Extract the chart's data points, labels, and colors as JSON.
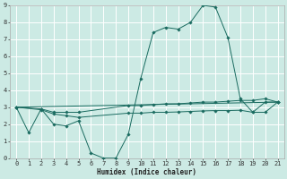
{
  "title": "",
  "xlabel": "Humidex (Indice chaleur)",
  "bg_color": "#cceae4",
  "grid_color": "#ffffff",
  "line_color": "#1a6b60",
  "xlim": [
    -0.5,
    21.5
  ],
  "ylim": [
    0,
    9
  ],
  "x_ticks": [
    0,
    1,
    2,
    3,
    4,
    5,
    6,
    7,
    8,
    9,
    10,
    11,
    12,
    13,
    14,
    15,
    16,
    17,
    18,
    19,
    20,
    21
  ],
  "y_ticks": [
    0,
    1,
    2,
    3,
    4,
    5,
    6,
    7,
    8,
    9
  ],
  "series1_x": [
    0,
    1,
    2,
    3,
    4,
    5,
    6,
    7,
    8,
    9,
    10,
    11,
    12,
    13,
    14,
    15,
    16,
    17,
    18,
    19,
    20,
    21
  ],
  "series1_y": [
    3.0,
    1.5,
    2.9,
    2.0,
    1.9,
    2.2,
    0.3,
    0.0,
    0.0,
    1.4,
    4.7,
    7.4,
    7.7,
    7.6,
    8.0,
    9.0,
    8.9,
    7.1,
    3.5,
    2.7,
    3.3,
    3.3
  ],
  "series2_x": [
    0,
    2,
    3,
    4,
    5,
    9,
    10,
    11,
    12,
    13,
    14,
    15,
    16,
    17,
    18,
    19,
    20,
    21
  ],
  "series2_y": [
    3.0,
    2.9,
    2.7,
    2.7,
    2.7,
    3.1,
    3.1,
    3.15,
    3.2,
    3.2,
    3.25,
    3.3,
    3.3,
    3.35,
    3.4,
    3.4,
    3.5,
    3.3
  ],
  "series3_x": [
    0,
    2,
    3,
    4,
    5,
    9,
    10,
    11,
    12,
    13,
    14,
    15,
    16,
    17,
    18,
    19,
    20,
    21
  ],
  "series3_y": [
    3.0,
    2.85,
    2.6,
    2.5,
    2.4,
    2.65,
    2.65,
    2.7,
    2.7,
    2.72,
    2.75,
    2.78,
    2.8,
    2.8,
    2.82,
    2.7,
    2.7,
    3.3
  ],
  "series4_x": [
    0,
    21
  ],
  "series4_y": [
    3.0,
    3.3
  ],
  "lw": 0.7,
  "ms": 1.8,
  "tick_fontsize": 5.0,
  "xlabel_fontsize": 5.5
}
